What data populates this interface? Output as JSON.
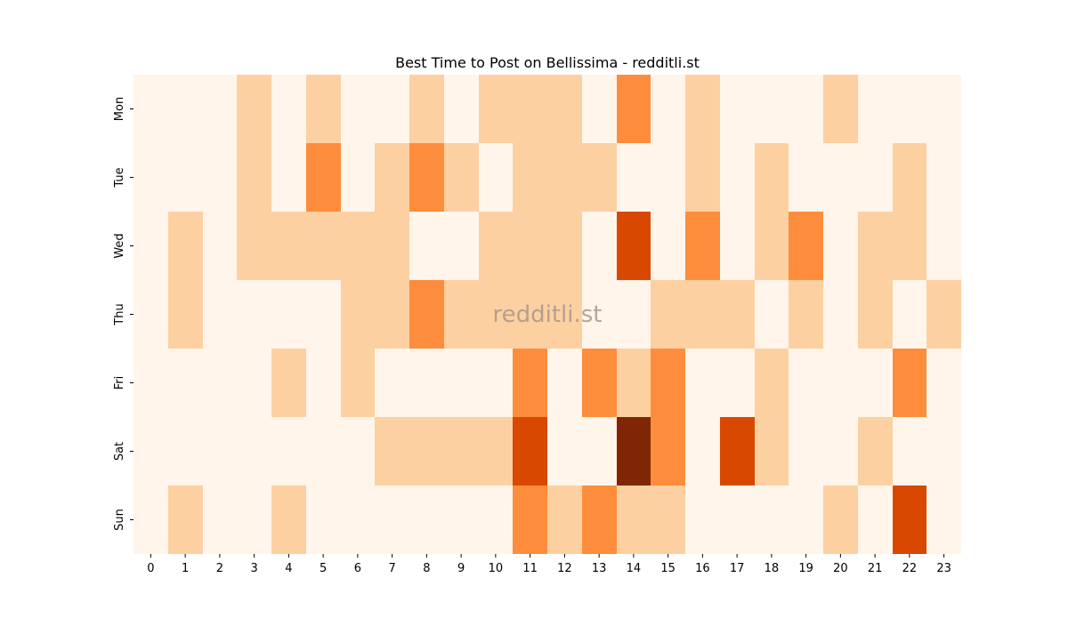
{
  "chart_data": {
    "type": "heatmap",
    "title": "Best Time to Post on Bellissima - redditli.st",
    "watermark": "redditli.st",
    "x_labels": [
      "0",
      "1",
      "2",
      "3",
      "4",
      "5",
      "6",
      "7",
      "8",
      "9",
      "10",
      "11",
      "12",
      "13",
      "14",
      "15",
      "16",
      "17",
      "18",
      "19",
      "20",
      "21",
      "22",
      "23"
    ],
    "y_labels": [
      "Mon",
      "Tue",
      "Wed",
      "Thu",
      "Fri",
      "Sat",
      "Sun"
    ],
    "xlabel": "",
    "ylabel": "",
    "values": [
      [
        0,
        0,
        0,
        1,
        0,
        1,
        0,
        0,
        1,
        0,
        1,
        1,
        1,
        0,
        2,
        0,
        1,
        0,
        0,
        0,
        1,
        0,
        0,
        0
      ],
      [
        0,
        0,
        0,
        1,
        0,
        2,
        0,
        1,
        2,
        1,
        0,
        1,
        1,
        1,
        0,
        0,
        1,
        0,
        1,
        0,
        0,
        0,
        1,
        0
      ],
      [
        0,
        1,
        0,
        1,
        1,
        1,
        1,
        1,
        0,
        0,
        1,
        1,
        1,
        0,
        3,
        0,
        2,
        0,
        1,
        2,
        0,
        1,
        1,
        0
      ],
      [
        0,
        1,
        0,
        0,
        0,
        0,
        1,
        1,
        2,
        1,
        1,
        1,
        1,
        0,
        0,
        1,
        1,
        1,
        0,
        1,
        0,
        1,
        0,
        1
      ],
      [
        0,
        0,
        0,
        0,
        1,
        0,
        1,
        0,
        0,
        0,
        0,
        2,
        0,
        2,
        1,
        2,
        0,
        0,
        1,
        0,
        0,
        0,
        2,
        0
      ],
      [
        0,
        0,
        0,
        0,
        0,
        0,
        0,
        1,
        1,
        1,
        1,
        3,
        0,
        0,
        4,
        2,
        0,
        3,
        1,
        0,
        0,
        1,
        0,
        0
      ],
      [
        0,
        1,
        0,
        0,
        1,
        0,
        0,
        0,
        0,
        0,
        0,
        2,
        1,
        2,
        1,
        1,
        0,
        0,
        0,
        0,
        1,
        0,
        3,
        0
      ]
    ],
    "colorscale": {
      "0": "#fff5eb",
      "1": "#fdd0a2",
      "2": "#fd8d3c",
      "3": "#d94801",
      "4": "#7f2704"
    },
    "grid": false,
    "legend": "none"
  }
}
